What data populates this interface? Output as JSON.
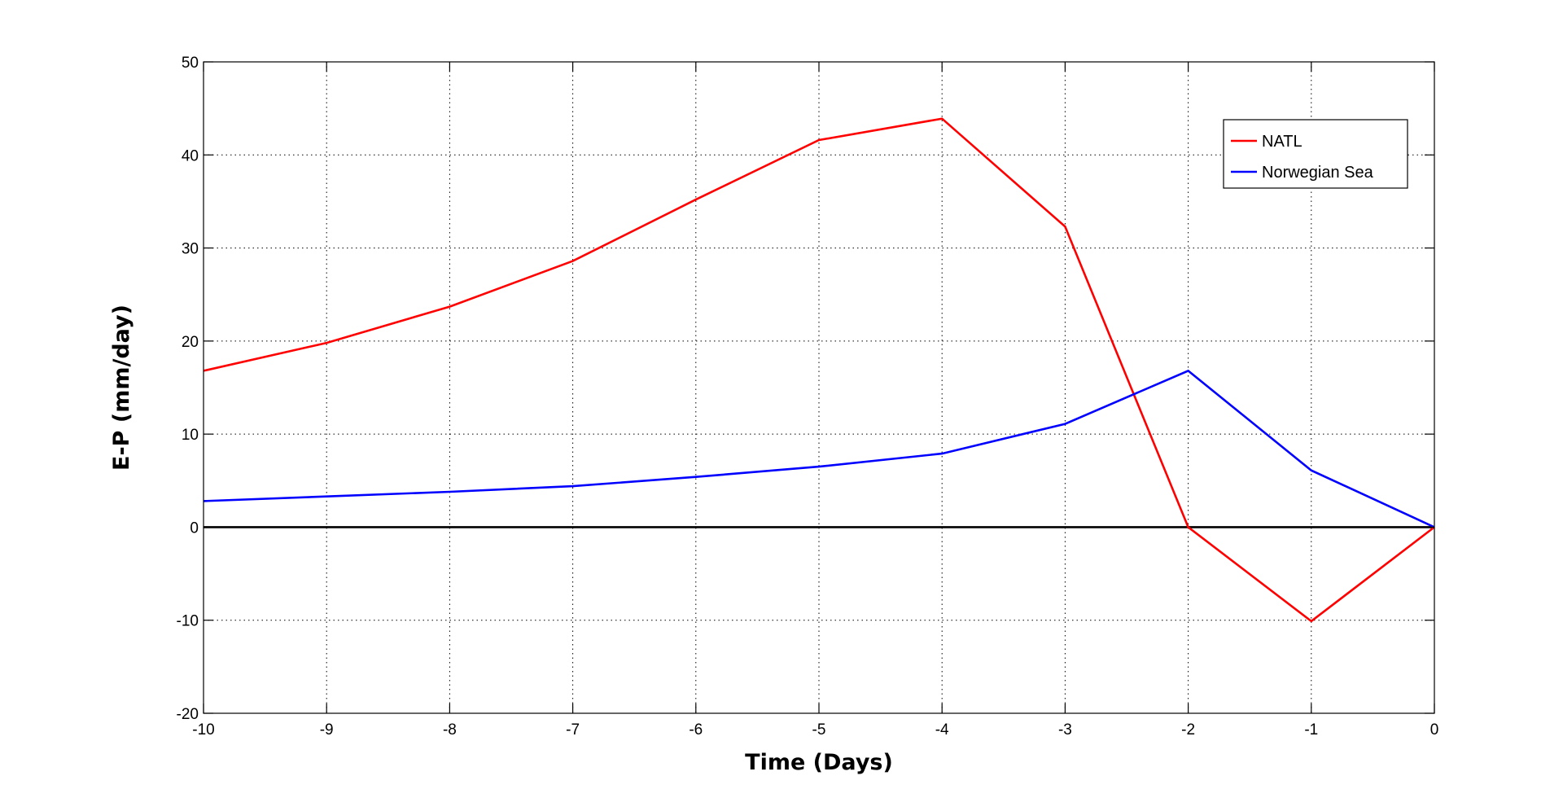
{
  "chart_data": {
    "type": "line",
    "title": "",
    "xlabel": "Time (Days)",
    "ylabel": "E-P (mm/day)",
    "xlim": [
      -10,
      0
    ],
    "ylim": [
      -20,
      50
    ],
    "x_ticks": [
      -10,
      -9,
      -8,
      -7,
      -6,
      -5,
      -4,
      -3,
      -2,
      -1,
      0
    ],
    "y_ticks": [
      -20,
      -10,
      0,
      10,
      20,
      30,
      40,
      50
    ],
    "grid": true,
    "legend_position": "top-right",
    "zero_line": {
      "y": 0,
      "color": "#000000"
    },
    "x": [
      -10,
      -9,
      -8,
      -7,
      -6,
      -5,
      -4,
      -3,
      -2,
      -1,
      0
    ],
    "series": [
      {
        "name": "NATL",
        "color": "#ff0000",
        "values": [
          16.8,
          19.8,
          23.7,
          28.6,
          35.2,
          41.6,
          43.9,
          32.3,
          0,
          -10.1,
          0
        ]
      },
      {
        "name": "Norwegian Sea",
        "color": "#0000ff",
        "values": [
          2.8,
          3.3,
          3.8,
          4.4,
          5.4,
          6.5,
          7.9,
          11.1,
          16.8,
          6.1,
          0
        ]
      }
    ]
  }
}
